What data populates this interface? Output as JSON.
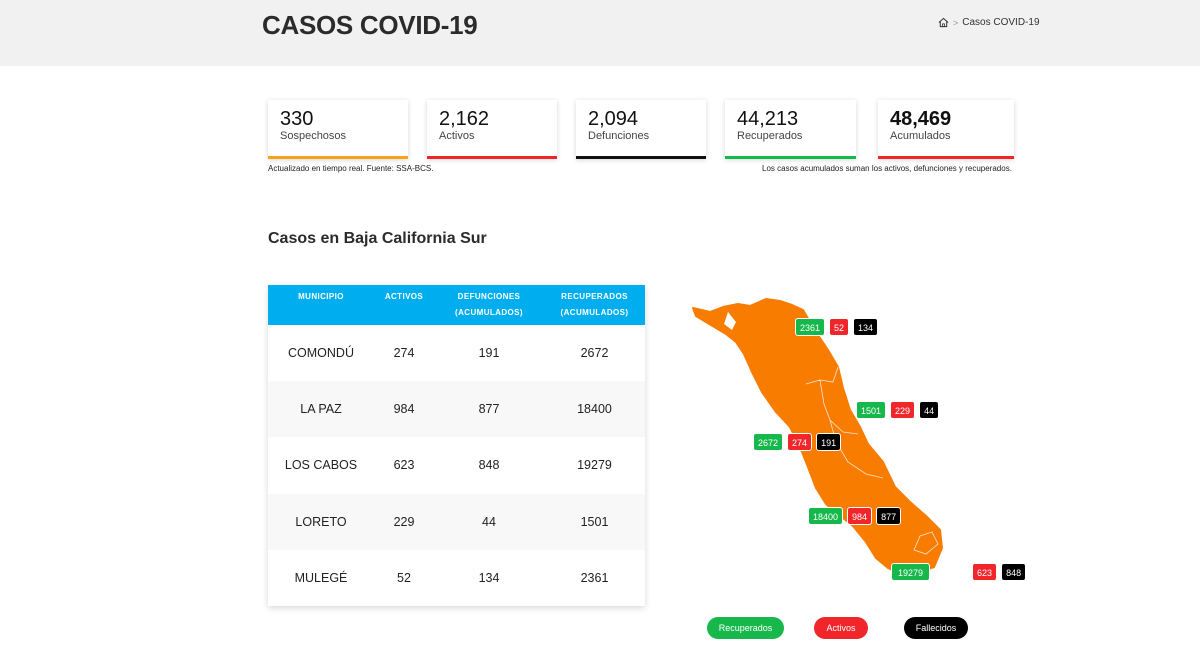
{
  "header": {
    "title": "CASOS COVID-19",
    "breadcrumb": {
      "home_icon": "home-icon",
      "current": "Casos COVID-19"
    }
  },
  "stats": [
    {
      "value": "330",
      "label": "Sospechosos",
      "color": "#f7a21b"
    },
    {
      "value": "2,162",
      "label": "Activos",
      "color": "#f0262b"
    },
    {
      "value": "2,094",
      "label": "Defunciones",
      "color": "#111111"
    },
    {
      "value": "44,213",
      "label": "Recuperados",
      "color": "#16b84b"
    },
    {
      "value": "48,469",
      "label": "Acumulados",
      "color": "#f0262b"
    }
  ],
  "notes": {
    "left": "Actualizado en tiempo real. Fuente: SSA-BCS.",
    "right": "Los casos acumulados suman los activos, defunciones y recuperados."
  },
  "section": {
    "title": "Casos en Baja California Sur"
  },
  "table": {
    "headers": [
      "MUNICIPIO",
      "ACTIVOS",
      "DEFUNCIONES",
      "(ACUMULADOS)",
      "RECUPERADOS",
      "(ACUMULADOS)"
    ],
    "rows": [
      [
        "COMONDÚ",
        "274",
        "191",
        "2672"
      ],
      [
        "LA PAZ",
        "984",
        "877",
        "18400"
      ],
      [
        "LOS CABOS",
        "623",
        "848",
        "19279"
      ],
      [
        "LORETO",
        "229",
        "44",
        "1501"
      ],
      [
        "MULEGÉ",
        "52",
        "134",
        "2361"
      ]
    ]
  },
  "map": {
    "fill_color": "#f77c00",
    "badges": [
      {
        "municipio": "MULEGÉ",
        "recuperados": "2361",
        "activos": "52",
        "fallecidos": "134"
      },
      {
        "municipio": "LORETO",
        "recuperados": "1501",
        "activos": "229",
        "fallecidos": "44"
      },
      {
        "municipio": "COMONDÚ",
        "recuperados": "2672",
        "activos": "274",
        "fallecidos": "191"
      },
      {
        "municipio": "LA PAZ",
        "recuperados": "18400",
        "activos": "984",
        "fallecidos": "877"
      },
      {
        "municipio": "LOS CABOS",
        "recuperados": "19279",
        "activos": "623",
        "fallecidos": "848"
      }
    ]
  },
  "legend": {
    "recuperados": {
      "label": "Recuperados",
      "color": "#16b84b"
    },
    "activos": {
      "label": "Activos",
      "color": "#f0262b"
    },
    "fallecidos": {
      "label": "Fallecidos",
      "color": "#000000"
    }
  }
}
